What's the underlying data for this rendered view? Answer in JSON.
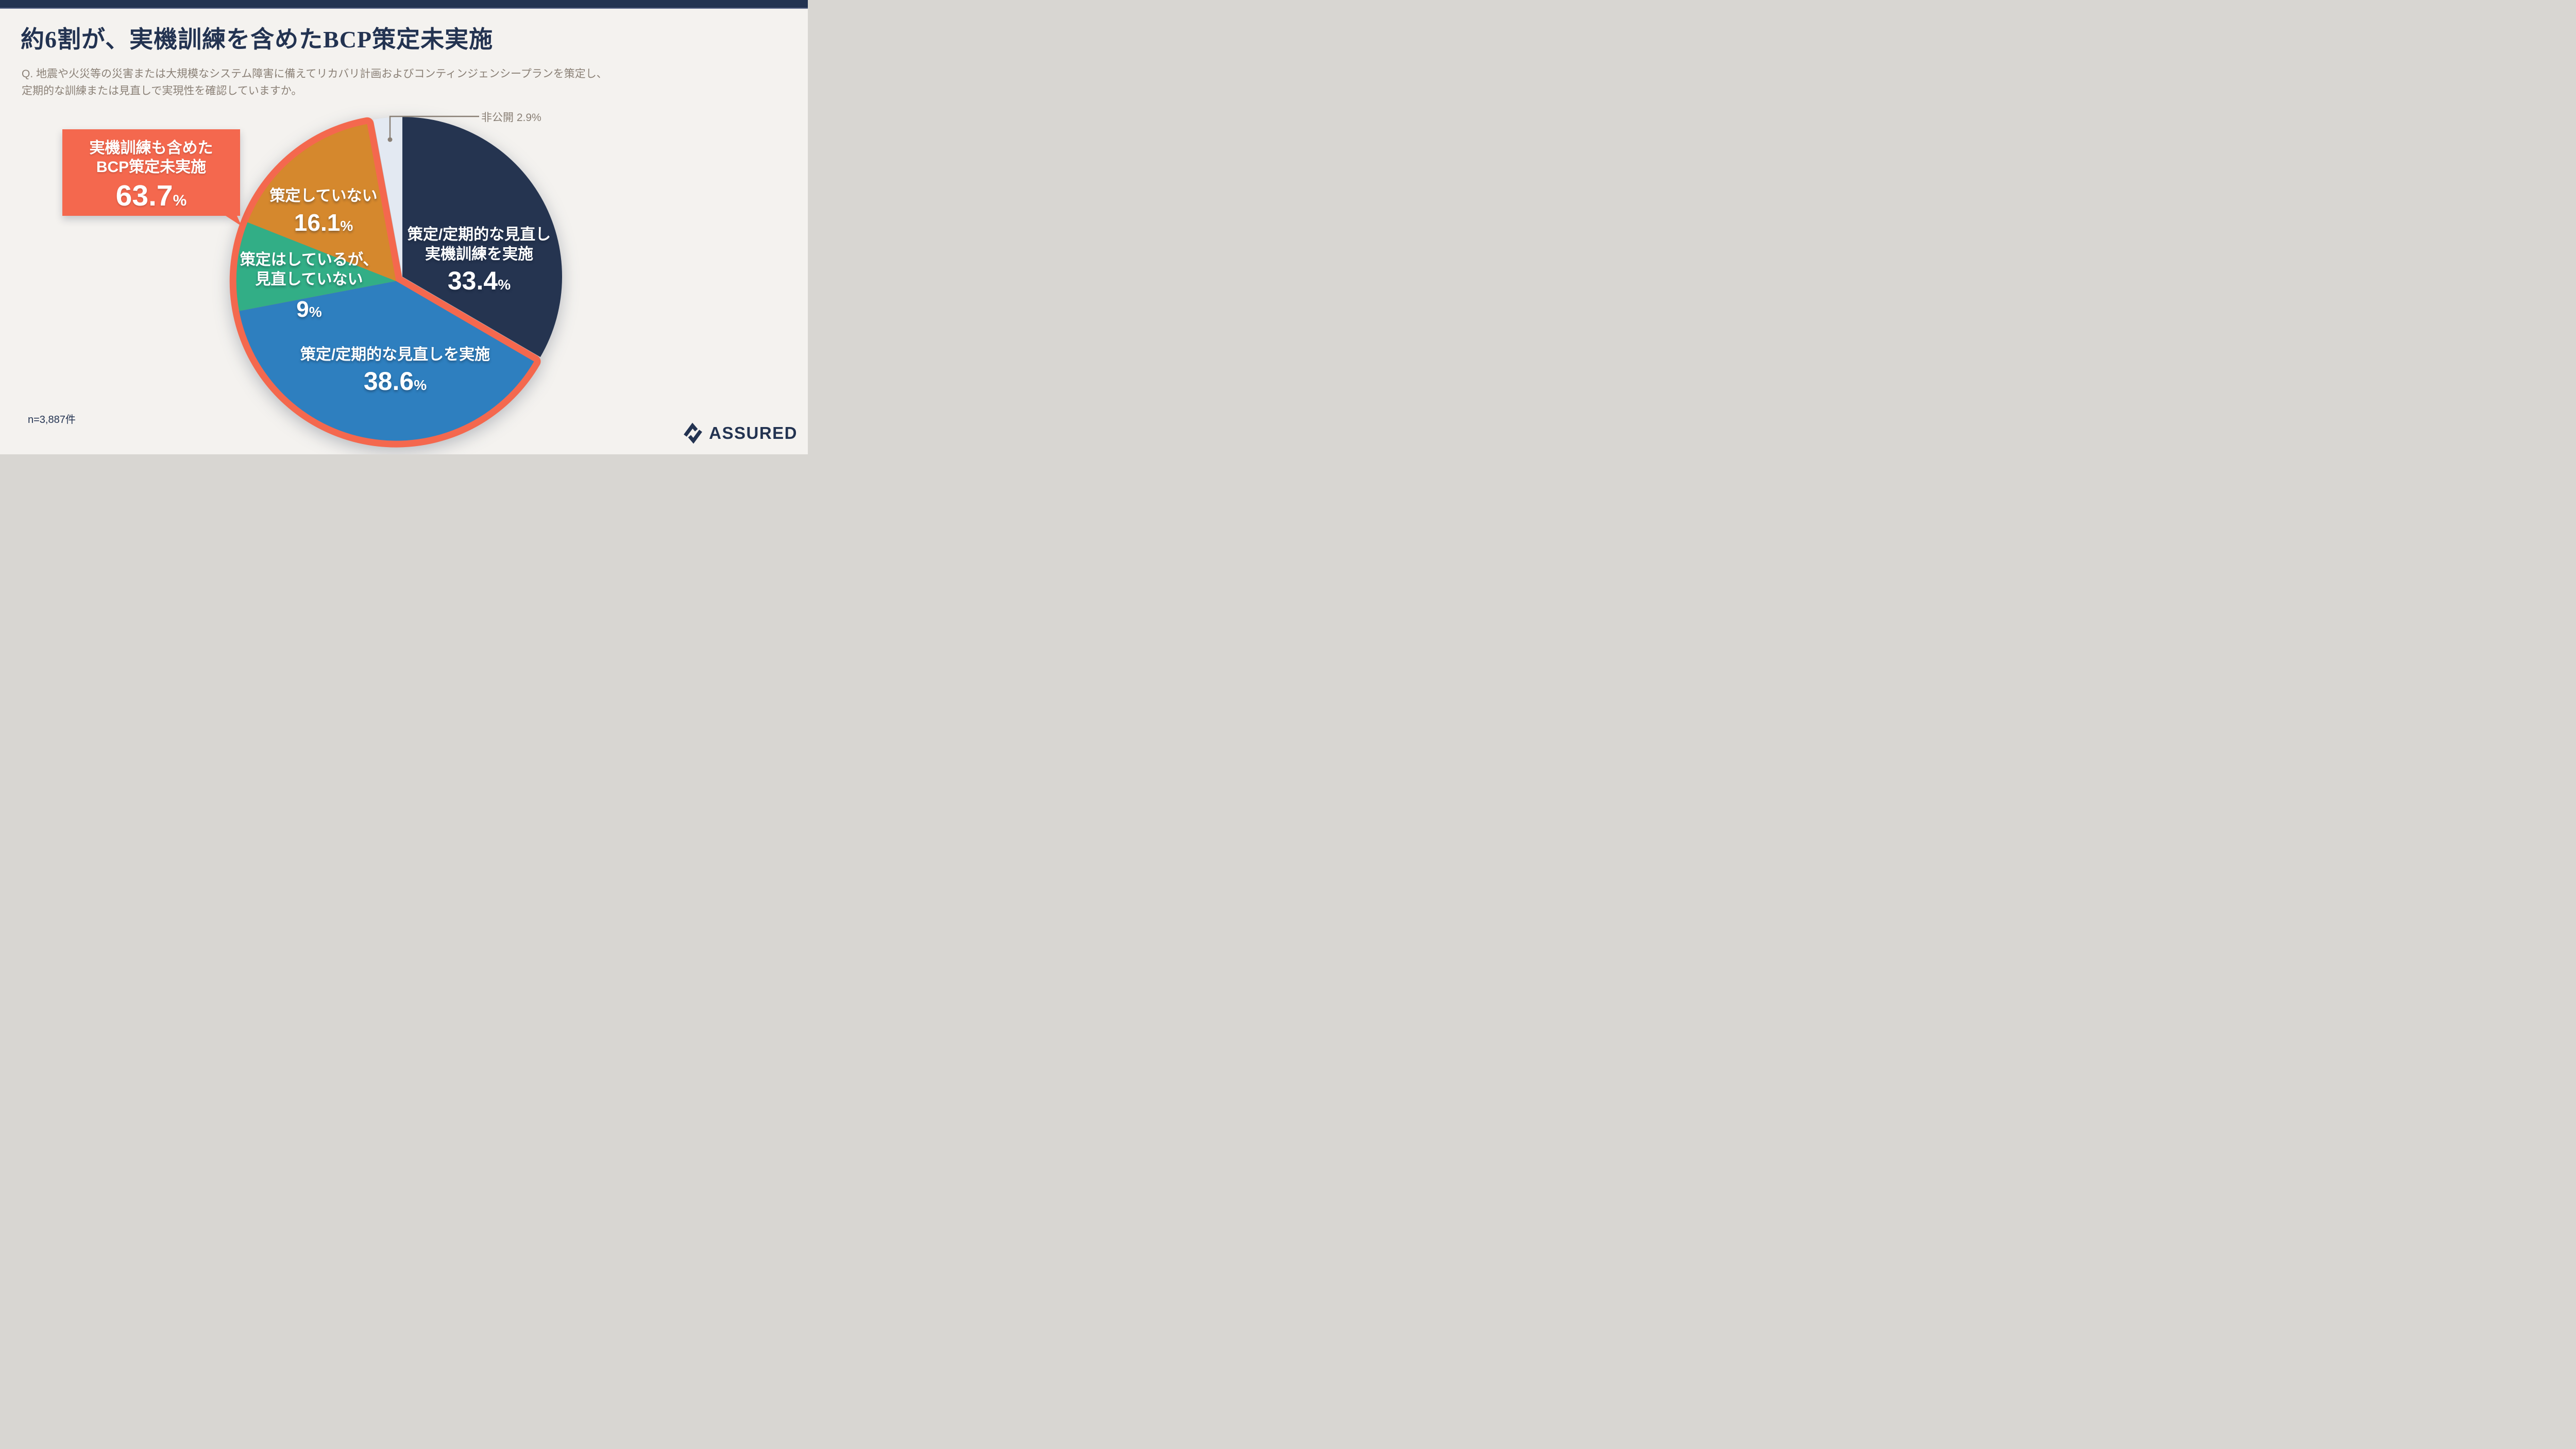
{
  "page": {
    "background": "#F4F2EF",
    "topbar_color": "#233351",
    "text_navy": "#233351",
    "text_gray": "#8B8177"
  },
  "header": {
    "title": "約6割が、実機訓練を含めたBCP策定未実施",
    "question_line1": "Q. 地震や火災等の災害または大規模なシステム障害に備えてリカバリ計画およびコンティンジェンシープランを策定し、",
    "question_line2": "定期的な訓練または見直しで実現性を確認していますか。"
  },
  "callout": {
    "line1": "実機訓練も含めた",
    "line2": "BCP策定未実施",
    "number": "63.7",
    "unit": "%",
    "color": "#F4684E"
  },
  "chart_data": {
    "type": "pie",
    "title": "約6割が、実機訓練を含めたBCP策定未実施",
    "question": "Q. 地震や火災等の災害または大規模なシステム障害に備えてリカバリ計画およびコンティンジェンシープランを策定し、定期的な訓練または見直しで実現性を確認していますか。",
    "n_label": "n=3,887件",
    "start_angle": "12 o'clock, clockwise",
    "slices": [
      {
        "label": "策定/定期的な見直し 実機訓練を実施",
        "name_line1": "策定/定期的な見直し",
        "name_line2": "実機訓練を実施",
        "value": 33.4,
        "number": "33.4",
        "unit": "%",
        "color": "#253450",
        "highlighted": false
      },
      {
        "label": "策定/定期的な見直しを実施",
        "name_line1": "策定/定期的な見直しを実施",
        "name_line2": "",
        "value": 38.6,
        "number": "38.6",
        "unit": "%",
        "color": "#2E7FBF",
        "highlighted": true
      },
      {
        "label": "策定はしているが、見直していない",
        "name_line1": "策定はしているが、",
        "name_line2": "見直していない",
        "value": 9,
        "number": "9",
        "unit": "%",
        "color": "#32AE86",
        "highlighted": true
      },
      {
        "label": "策定していない",
        "name_line1": "策定していない",
        "name_line2": "",
        "value": 16.1,
        "number": "16.1",
        "unit": "%",
        "color": "#D5882D",
        "highlighted": true
      },
      {
        "label": "非公開",
        "name_line1": "非公開",
        "name_line2": "",
        "value": 2.9,
        "number": "2.9",
        "unit": "%",
        "color": "#E3E9F2",
        "highlighted": false
      }
    ],
    "highlight_group": {
      "label": "実機訓練も含めたBCP策定未実施",
      "value": 63.7,
      "outline_color": "#F4684E",
      "exploded": true
    },
    "annotation_private": {
      "label": "非公開",
      "number": "2.9",
      "unit": "%",
      "leader_color": "#8A8076"
    },
    "legend_position": "labels-on-slices"
  },
  "footnote": {
    "sample": "n=3,887件"
  },
  "logo": {
    "text": "ASSURED",
    "color": "#233351"
  }
}
